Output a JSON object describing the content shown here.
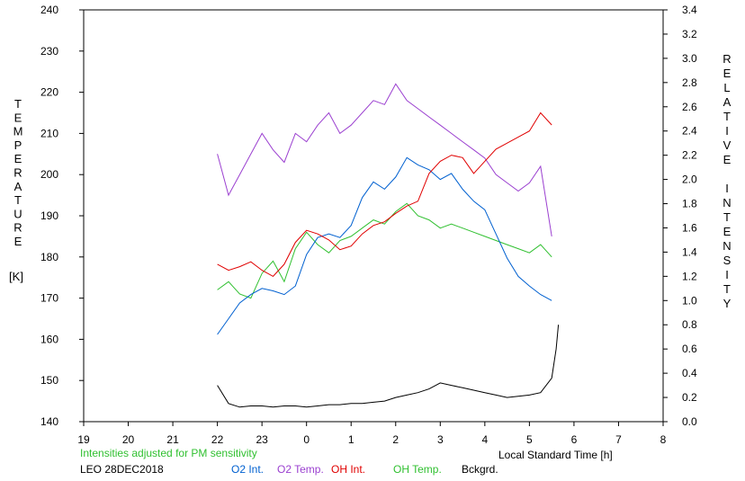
{
  "chart_data": {
    "type": "line",
    "title": "",
    "xlabel": "Local Standard Time [h]",
    "ylabel_left_letters": [
      "T",
      "E",
      "M",
      "P",
      "E",
      "R",
      "A",
      "T",
      "U",
      "R",
      "E"
    ],
    "ylabel_left_unit": "[K]",
    "ylabel_right_line1": [
      "R",
      "E",
      "L",
      "A",
      "T",
      "I",
      "V",
      "E"
    ],
    "ylabel_right_line2": [
      "I",
      "N",
      "T",
      "E",
      "N",
      "S",
      "I",
      "T",
      "Y"
    ],
    "xlim": [
      19,
      32
    ],
    "x_tick_labels": [
      "19",
      "20",
      "21",
      "22",
      "23",
      "0",
      "1",
      "2",
      "3",
      "4",
      "5",
      "6",
      "7",
      "8"
    ],
    "ylim_left": [
      140,
      240
    ],
    "y_left_ticks": [
      "140",
      "150",
      "160",
      "170",
      "180",
      "190",
      "200",
      "210",
      "220",
      "230",
      "240"
    ],
    "ylim_right": [
      0,
      3.4
    ],
    "y_right_ticks": [
      "0.0",
      "0.2",
      "0.4",
      "0.6",
      "0.8",
      "1.0",
      "1.2",
      "1.4",
      "1.6",
      "1.8",
      "2.0",
      "2.2",
      "2.4",
      "2.6",
      "2.8",
      "3.0",
      "3.2",
      "3.4"
    ],
    "note": "Intensities adjusted for PM sensitivity",
    "station": "LEO 28DEC2018",
    "series": [
      {
        "name": "O2 Int.",
        "color": "#0060d0",
        "axis": "right",
        "x": [
          22.0,
          22.25,
          22.5,
          22.75,
          23.0,
          23.25,
          23.5,
          23.75,
          24.0,
          24.25,
          24.5,
          24.75,
          25.0,
          25.25,
          25.5,
          25.75,
          26.0,
          26.25,
          26.5,
          26.75,
          27.0,
          27.25,
          27.5,
          27.75,
          28.0,
          28.25,
          28.5,
          28.75,
          29.0,
          29.25,
          29.5
        ],
        "y": [
          0.72,
          0.85,
          0.98,
          1.05,
          1.1,
          1.08,
          1.05,
          1.12,
          1.38,
          1.52,
          1.55,
          1.52,
          1.62,
          1.85,
          1.98,
          1.92,
          2.02,
          2.18,
          2.12,
          2.08,
          2.0,
          2.05,
          1.92,
          1.82,
          1.75,
          1.55,
          1.35,
          1.2,
          1.12,
          1.05,
          1.0
        ]
      },
      {
        "name": "O2 Temp.",
        "color": "#9b40d0",
        "axis": "left",
        "x": [
          22.0,
          22.25,
          22.5,
          22.75,
          23.0,
          23.25,
          23.5,
          23.75,
          24.0,
          24.25,
          24.5,
          24.75,
          25.0,
          25.25,
          25.5,
          25.75,
          26.0,
          26.25,
          26.5,
          26.75,
          27.0,
          27.25,
          27.5,
          27.75,
          28.0,
          28.25,
          28.5,
          28.75,
          29.0,
          29.25,
          29.5
        ],
        "y": [
          205,
          195,
          200,
          205,
          210,
          206,
          203,
          210,
          208,
          212,
          215,
          210,
          212,
          215,
          218,
          217,
          222,
          218,
          216,
          214,
          212,
          210,
          208,
          206,
          204,
          200,
          198,
          196,
          198,
          202,
          185
        ]
      },
      {
        "name": "OH Int.",
        "color": "#e00000",
        "axis": "right",
        "x": [
          22.0,
          22.25,
          22.5,
          22.75,
          23.0,
          23.25,
          23.5,
          23.75,
          24.0,
          24.25,
          24.5,
          24.75,
          25.0,
          25.25,
          25.5,
          25.75,
          26.0,
          26.25,
          26.5,
          26.75,
          27.0,
          27.25,
          27.5,
          27.75,
          28.0,
          28.25,
          28.5,
          28.75,
          29.0,
          29.25,
          29.5
        ],
        "y": [
          1.3,
          1.25,
          1.28,
          1.32,
          1.25,
          1.2,
          1.3,
          1.48,
          1.58,
          1.55,
          1.5,
          1.42,
          1.45,
          1.55,
          1.62,
          1.65,
          1.72,
          1.78,
          1.82,
          2.05,
          2.15,
          2.2,
          2.18,
          2.05,
          2.15,
          2.25,
          2.3,
          2.35,
          2.4,
          2.55,
          2.45
        ]
      },
      {
        "name": "OH Temp.",
        "color": "#30c030",
        "axis": "left",
        "x": [
          22.0,
          22.25,
          22.5,
          22.75,
          23.0,
          23.25,
          23.5,
          23.75,
          24.0,
          24.25,
          24.5,
          24.75,
          25.0,
          25.25,
          25.5,
          25.75,
          26.0,
          26.25,
          26.5,
          26.75,
          27.0,
          27.25,
          27.5,
          27.75,
          28.0,
          28.25,
          28.5,
          28.75,
          29.0,
          29.25,
          29.5
        ],
        "y": [
          172,
          174,
          171,
          170,
          176,
          179,
          174,
          182,
          186,
          183,
          181,
          184,
          185,
          187,
          189,
          188,
          191,
          193,
          190,
          189,
          187,
          188,
          187,
          186,
          185,
          184,
          183,
          182,
          181,
          183,
          180
        ]
      },
      {
        "name": "Bckgrd.",
        "color": "#000000",
        "axis": "right",
        "x": [
          22.0,
          22.25,
          22.5,
          22.75,
          23.0,
          23.25,
          23.5,
          23.75,
          24.0,
          24.25,
          24.5,
          24.75,
          25.0,
          25.25,
          25.5,
          25.75,
          26.0,
          26.25,
          26.5,
          26.75,
          27.0,
          27.25,
          27.5,
          27.75,
          28.0,
          28.25,
          28.5,
          28.75,
          29.0,
          29.25,
          29.5,
          29.6,
          29.65
        ],
        "y": [
          0.3,
          0.15,
          0.12,
          0.13,
          0.13,
          0.12,
          0.13,
          0.13,
          0.12,
          0.13,
          0.14,
          0.14,
          0.15,
          0.15,
          0.16,
          0.17,
          0.2,
          0.22,
          0.24,
          0.27,
          0.32,
          0.3,
          0.28,
          0.26,
          0.24,
          0.22,
          0.2,
          0.21,
          0.22,
          0.24,
          0.36,
          0.6,
          0.8
        ]
      }
    ]
  }
}
